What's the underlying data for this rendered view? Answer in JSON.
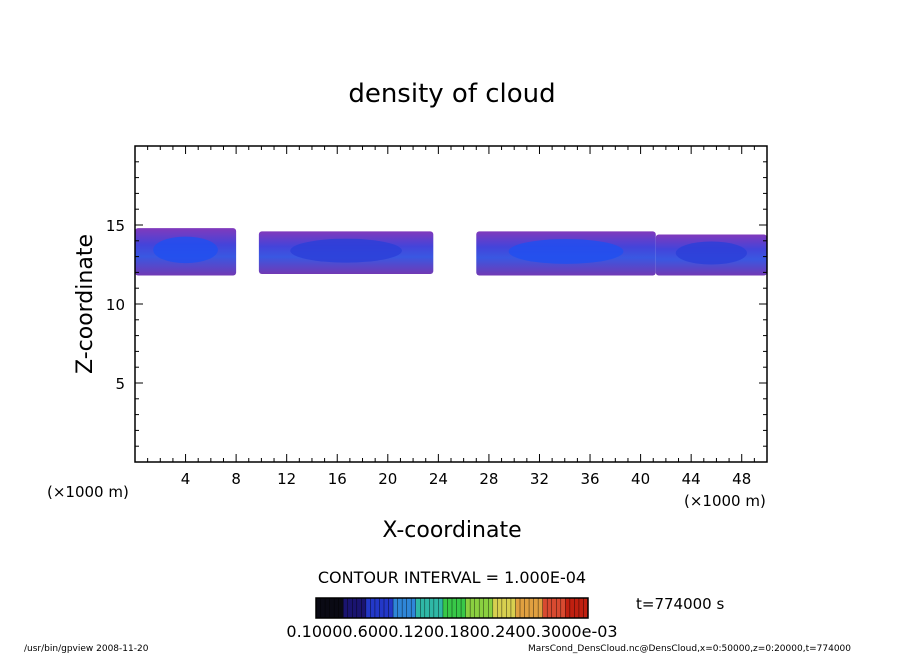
{
  "chart_data": {
    "type": "heatmap",
    "title": "density of cloud",
    "xlabel": "X-coordinate",
    "ylabel": "Z-coordinate",
    "x_unit_note": "(×1000 m)",
    "xlim": [
      0,
      50
    ],
    "ylim": [
      0,
      20
    ],
    "x_ticks": [
      4,
      8,
      12,
      16,
      20,
      24,
      28,
      32,
      36,
      40,
      44,
      48
    ],
    "x_tick_labels": [
      "4",
      "8",
      "12",
      "16",
      "20",
      "24",
      "28",
      "32",
      "36",
      "40",
      "44",
      "48"
    ],
    "y_ticks": [
      5,
      10,
      15
    ],
    "y_tick_labels": [
      "5",
      "10",
      "15"
    ],
    "contour_interval": "CONTOUR INTERVAL = 1.000E-04",
    "time_label": "t=774000 s",
    "colorbar_labels_text": "0.10000.6000.1200.1800.2400.3000e-03",
    "colorbar_colors": [
      "#0a0a14",
      "#1a1470",
      "#2338c8",
      "#2f86d8",
      "#2fb8a6",
      "#38c848",
      "#8ad040",
      "#d8d050",
      "#e0a040",
      "#d84a30",
      "#c02010"
    ],
    "cloud_regions": [
      {
        "name": "region-a",
        "x": [
          0,
          8.0
        ],
        "z": [
          11.8,
          14.8
        ],
        "peak": 0.00018
      },
      {
        "name": "region-b",
        "x": [
          9.8,
          23.6
        ],
        "z": [
          11.9,
          14.6
        ],
        "peak": 0.00014
      },
      {
        "name": "region-c",
        "x": [
          27.0,
          41.2
        ],
        "z": [
          11.8,
          14.6
        ],
        "peak": 0.00016
      },
      {
        "name": "region-d",
        "x": [
          41.2,
          50
        ],
        "z": [
          11.8,
          14.4
        ],
        "peak": 0.00012
      }
    ]
  },
  "footer": {
    "left": "/usr/bin/gpview   2008-11-20",
    "right": "MarsCond_DensCloud.nc@DensCloud,x=0:50000,z=0:20000,t=774000"
  }
}
